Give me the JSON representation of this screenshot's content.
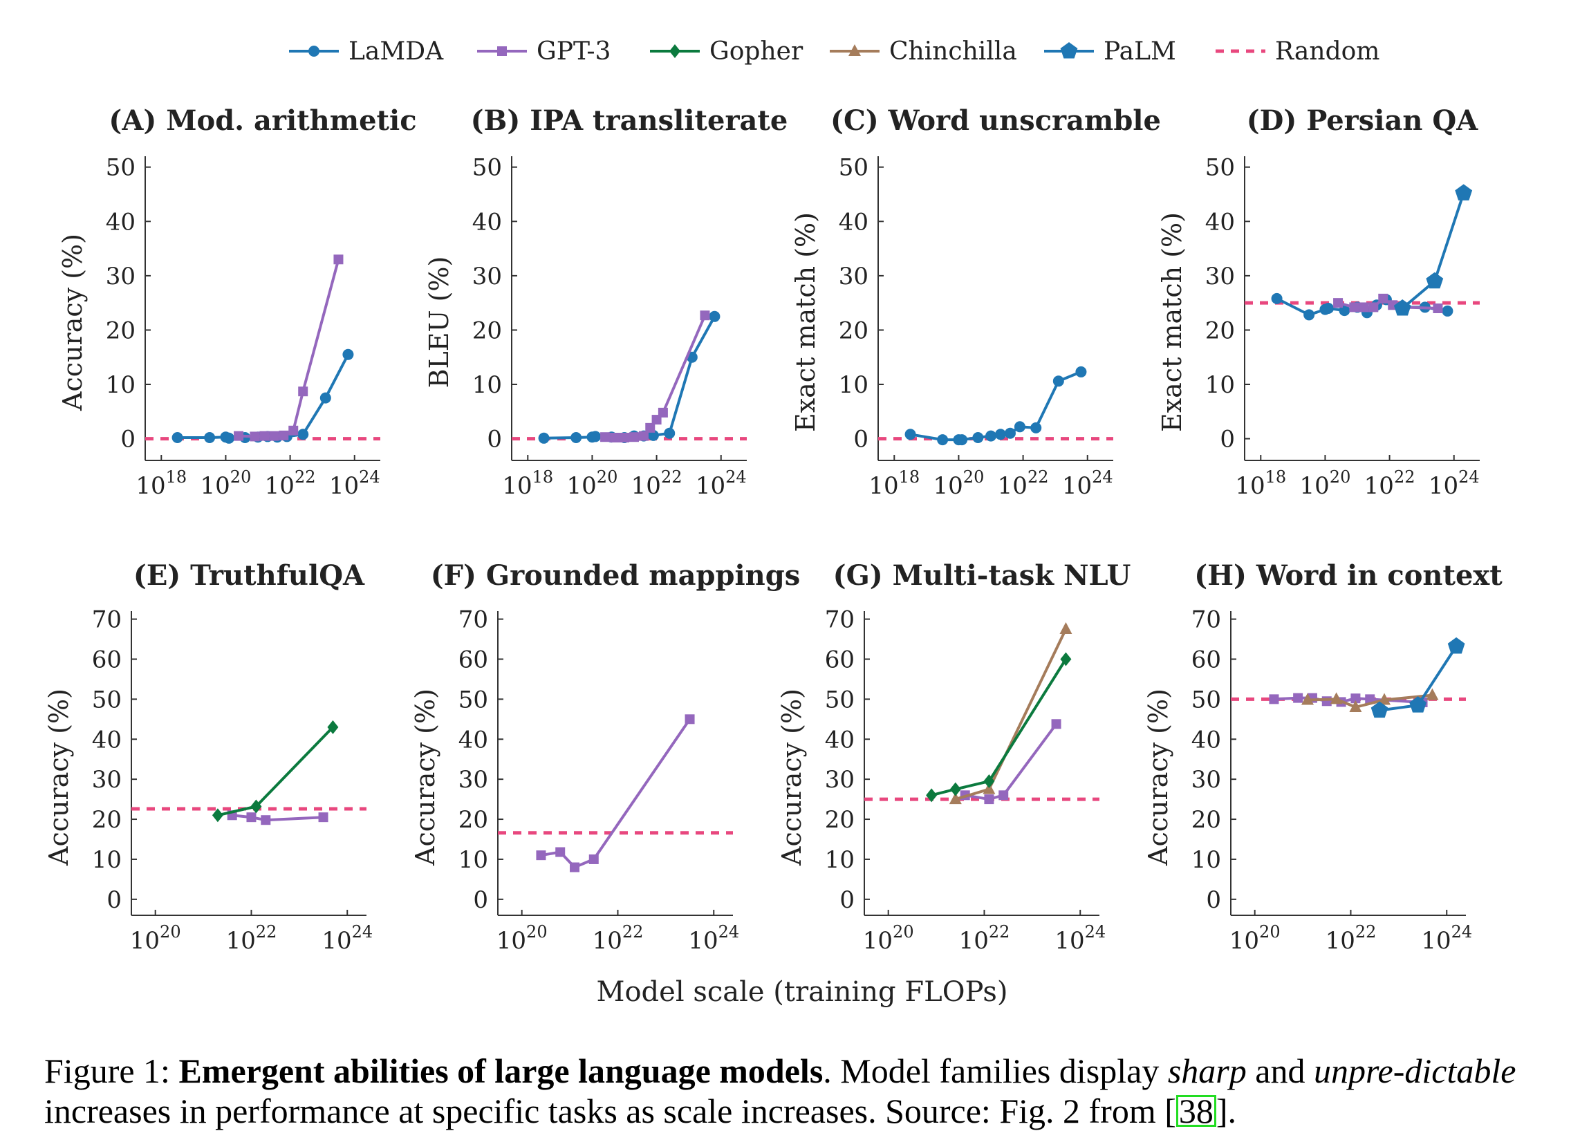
{
  "legend": [
    {
      "name": "LaMDA",
      "color": "#1f77b4",
      "marker": "circle"
    },
    {
      "name": "GPT-3",
      "color": "#9467bd",
      "marker": "square"
    },
    {
      "name": "Gopher",
      "color": "#0b7a3e",
      "marker": "diamond"
    },
    {
      "name": "Chinchilla",
      "color": "#a57c5b",
      "marker": "triangle"
    },
    {
      "name": "PaLM",
      "color": "#1f77b4",
      "marker": "pentagon"
    },
    {
      "name": "Random",
      "color": "#e8477e",
      "marker": "dashed"
    }
  ],
  "xlabel": "Model scale (training FLOPs)",
  "caption": {
    "prefix": "Figure 1: ",
    "bold": "Emergent abilities of large language models",
    "mid1": ". Model families display ",
    "italic1": "sharp",
    "mid2": " and ",
    "italic2": "unpre-dictable",
    "mid3": " increases in performance at specific tasks as scale increases. Source: Fig. 2 from [",
    "ref": "38",
    "end": "]."
  },
  "chart_data": [
    {
      "type": "line",
      "title": "(A) Mod. arithmetic",
      "ylabel": "Accuracy (%)",
      "xscale": "log",
      "xlim_exp": [
        17.5,
        24.8
      ],
      "xticks_exp": [
        18,
        20,
        22,
        24
      ],
      "ylim": [
        -4,
        52
      ],
      "yticks": [
        0,
        10,
        20,
        30,
        40,
        50
      ],
      "random": 0,
      "series": [
        {
          "name": "LaMDA",
          "x_exp": [
            18.5,
            19.5,
            20.0,
            20.1,
            20.6,
            21.0,
            21.3,
            21.6,
            21.9,
            22.4,
            23.1,
            23.8
          ],
          "y": [
            0.2,
            0.2,
            0.3,
            0.1,
            0.2,
            0.3,
            0.4,
            0.3,
            0.4,
            0.8,
            7.5,
            15.5
          ]
        },
        {
          "name": "GPT-3",
          "x_exp": [
            20.4,
            20.9,
            21.2,
            21.5,
            21.8,
            22.1,
            22.4,
            23.5
          ],
          "y": [
            0.5,
            0.4,
            0.5,
            0.5,
            0.6,
            1.5,
            8.7,
            33
          ]
        }
      ]
    },
    {
      "type": "line",
      "title": "(B) IPA transliterate",
      "ylabel": "BLEU (%)",
      "xscale": "log",
      "xlim_exp": [
        17.5,
        24.8
      ],
      "xticks_exp": [
        18,
        20,
        22,
        24
      ],
      "ylim": [
        -4,
        52
      ],
      "yticks": [
        0,
        10,
        20,
        30,
        40,
        50
      ],
      "random": 0,
      "series": [
        {
          "name": "LaMDA",
          "x_exp": [
            18.5,
            19.5,
            20.0,
            20.1,
            20.6,
            21.0,
            21.3,
            21.6,
            21.9,
            22.4,
            23.1,
            23.8
          ],
          "y": [
            0.1,
            0.2,
            0.3,
            0.4,
            0.3,
            0.2,
            0.5,
            0.5,
            0.6,
            1.0,
            15,
            22.5
          ]
        },
        {
          "name": "GPT-3",
          "x_exp": [
            20.4,
            20.7,
            21.0,
            21.3,
            21.6,
            21.8,
            22.0,
            22.2,
            23.5
          ],
          "y": [
            0.3,
            0.2,
            0.2,
            0.3,
            0.5,
            2.0,
            3.5,
            4.8,
            22.7
          ]
        }
      ]
    },
    {
      "type": "line",
      "title": "(C) Word unscramble",
      "ylabel": "Exact match (%)",
      "xscale": "log",
      "xlim_exp": [
        17.5,
        24.8
      ],
      "xticks_exp": [
        18,
        20,
        22,
        24
      ],
      "ylim": [
        -4,
        52
      ],
      "yticks": [
        0,
        10,
        20,
        30,
        40,
        50
      ],
      "random": 0,
      "series": [
        {
          "name": "LaMDA",
          "x_exp": [
            18.5,
            19.5,
            20.0,
            20.1,
            20.6,
            21.0,
            21.3,
            21.6,
            21.9,
            22.4,
            23.1,
            23.8
          ],
          "y": [
            0.8,
            -0.2,
            -0.2,
            -0.2,
            0.2,
            0.5,
            0.8,
            1.0,
            2.2,
            2.0,
            10.6,
            12.3
          ]
        }
      ]
    },
    {
      "type": "line",
      "title": "(D) Persian QA",
      "ylabel": "Exact match (%)",
      "xscale": "log",
      "xlim_exp": [
        17.5,
        24.8
      ],
      "xticks_exp": [
        18,
        20,
        22,
        24
      ],
      "ylim": [
        -4,
        52
      ],
      "yticks": [
        0,
        10,
        20,
        30,
        40,
        50
      ],
      "random": 25,
      "series": [
        {
          "name": "LaMDA",
          "x_exp": [
            18.5,
            19.5,
            20.0,
            20.1,
            20.6,
            21.0,
            21.3,
            21.6,
            21.9,
            22.4,
            23.1,
            23.8
          ],
          "y": [
            25.8,
            22.8,
            23.8,
            24.0,
            23.6,
            24.2,
            23.2,
            24.6,
            25.6,
            24.2,
            24.2,
            23.5
          ]
        },
        {
          "name": "GPT-3",
          "x_exp": [
            20.4,
            20.9,
            21.2,
            21.5,
            21.8,
            22.1,
            22.4,
            23.5
          ],
          "y": [
            25.0,
            24.2,
            24.2,
            24.2,
            25.8,
            24.6,
            24.2,
            24.0
          ]
        },
        {
          "name": "PaLM",
          "x_exp": [
            22.4,
            23.4,
            24.3
          ],
          "y": [
            24.0,
            29.0,
            45.2
          ]
        }
      ]
    },
    {
      "type": "line",
      "title": "(E) TruthfulQA",
      "ylabel": "Accuracy (%)",
      "xscale": "log",
      "xlim_exp": [
        19.5,
        24.4
      ],
      "xticks_exp": [
        20,
        22,
        24
      ],
      "ylim": [
        -4,
        72
      ],
      "yticks": [
        0,
        10,
        20,
        30,
        40,
        50,
        60,
        70
      ],
      "random": 22.6,
      "series": [
        {
          "name": "GPT-3",
          "x_exp": [
            21.6,
            22.0,
            22.3,
            23.5
          ],
          "y": [
            21.0,
            20.5,
            19.8,
            20.5
          ]
        },
        {
          "name": "Gopher",
          "x_exp": [
            21.3,
            22.1,
            23.7
          ],
          "y": [
            21.0,
            23.2,
            43.0
          ]
        }
      ]
    },
    {
      "type": "line",
      "title": "(F) Grounded mappings",
      "ylabel": "Accuracy (%)",
      "xscale": "log",
      "xlim_exp": [
        19.5,
        24.4
      ],
      "xticks_exp": [
        20,
        22,
        24
      ],
      "ylim": [
        -4,
        72
      ],
      "yticks": [
        0,
        10,
        20,
        30,
        40,
        50,
        60,
        70
      ],
      "random": 16.6,
      "series": [
        {
          "name": "GPT-3",
          "x_exp": [
            20.4,
            20.8,
            21.1,
            21.5,
            23.5
          ],
          "y": [
            11.0,
            11.8,
            8.0,
            10.0,
            45.0
          ]
        }
      ]
    },
    {
      "type": "line",
      "title": "(G) Multi-task NLU",
      "ylabel": "Accuracy (%)",
      "xscale": "log",
      "xlim_exp": [
        19.5,
        24.4
      ],
      "xticks_exp": [
        20,
        22,
        24
      ],
      "ylim": [
        -4,
        72
      ],
      "yticks": [
        0,
        10,
        20,
        30,
        40,
        50,
        60,
        70
      ],
      "random": 25,
      "series": [
        {
          "name": "GPT-3",
          "x_exp": [
            21.6,
            22.1,
            22.4,
            23.5
          ],
          "y": [
            26.0,
            25.0,
            26.0,
            43.8
          ]
        },
        {
          "name": "Chinchilla",
          "x_exp": [
            21.4,
            22.1,
            23.7
          ],
          "y": [
            25.0,
            27.5,
            67.5
          ]
        },
        {
          "name": "Gopher",
          "x_exp": [
            20.9,
            21.4,
            22.1,
            23.7
          ],
          "y": [
            26.0,
            27.5,
            29.5,
            60.0
          ]
        }
      ]
    },
    {
      "type": "line",
      "title": "(H) Word in context",
      "ylabel": "Accuracy (%)",
      "xscale": "log",
      "xlim_exp": [
        19.5,
        24.4
      ],
      "xticks_exp": [
        20,
        22,
        24
      ],
      "ylim": [
        -4,
        72
      ],
      "yticks": [
        0,
        10,
        20,
        30,
        40,
        50,
        60,
        70
      ],
      "random": 50,
      "series": [
        {
          "name": "GPT-3",
          "x_exp": [
            20.4,
            20.9,
            21.2,
            21.5,
            21.8,
            22.1,
            22.4,
            23.5
          ],
          "y": [
            50.0,
            50.3,
            50.3,
            49.5,
            49.3,
            50.2,
            50.0,
            49.2
          ]
        },
        {
          "name": "Chinchilla",
          "x_exp": [
            21.1,
            21.7,
            22.1,
            22.7,
            23.7
          ],
          "y": [
            49.8,
            50.0,
            48.0,
            49.8,
            51.0
          ]
        },
        {
          "name": "PaLM",
          "x_exp": [
            22.6,
            23.4,
            24.2
          ],
          "y": [
            47.2,
            48.5,
            63.2
          ]
        }
      ]
    }
  ]
}
